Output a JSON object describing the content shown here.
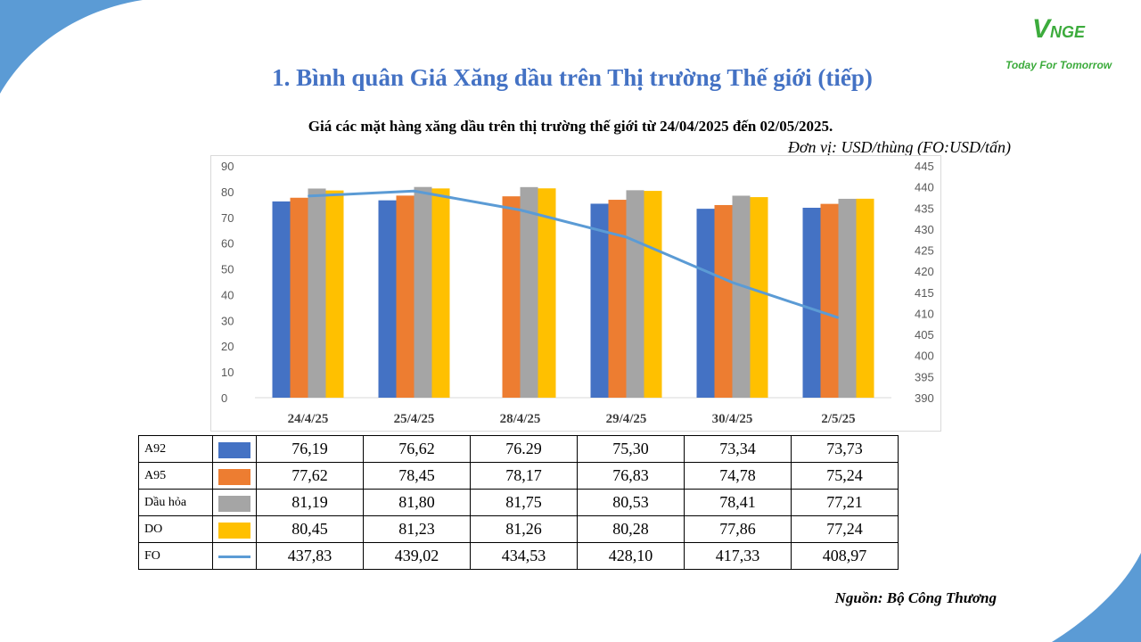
{
  "page": {
    "title": "1. Bình quân Giá Xăng dầu trên Thị trường Thế giới (tiếp)",
    "logo_mark": "V",
    "logo_mark_rest": "NGE",
    "logo_tagline": "Today For Tomorrow",
    "source": "Nguồn: Bộ Công Thương"
  },
  "colors": {
    "accent": "#4472c4",
    "corner": "#5b9bd5",
    "logo": "#3cab3c"
  },
  "chart_data": {
    "type": "bar",
    "title": "Giá các mặt hàng xăng dầu trên thị trường thế giới từ 24/04/2025 đến 02/05/2025.",
    "unit": "Đơn vị:  USD/thùng (FO:USD/tấn)",
    "categories": [
      "24/4/25",
      "25/4/25",
      "28/4/25",
      "29/4/25",
      "30/4/25",
      "2/5/25"
    ],
    "y_left": {
      "min": 0,
      "max": 90,
      "ticks": [
        "0",
        "10",
        "20",
        "30",
        "40",
        "50",
        "60",
        "70",
        "80",
        "90"
      ]
    },
    "y_right": {
      "min": 390,
      "max": 445,
      "ticks": [
        "390",
        "395",
        "400",
        "405",
        "410",
        "415",
        "420",
        "425",
        "430",
        "435",
        "440",
        "445"
      ]
    },
    "grid": false,
    "legend": "table-below",
    "series": [
      {
        "name": "A92",
        "type": "bar",
        "axis": "left",
        "color": "#4472c4",
        "values": [
          76.19,
          76.62,
          null,
          75.3,
          73.34,
          73.73
        ],
        "labels": [
          "76,19",
          "76,62",
          "76.29",
          "75,30",
          "73,34",
          "73,73"
        ]
      },
      {
        "name": "A95",
        "type": "bar",
        "axis": "left",
        "color": "#ed7d31",
        "values": [
          77.62,
          78.45,
          78.17,
          76.83,
          74.78,
          75.24
        ],
        "labels": [
          "77,62",
          "78,45",
          "78,17",
          "76,83",
          "74,78",
          "75,24"
        ]
      },
      {
        "name": "Dầu hỏa",
        "type": "bar",
        "axis": "left",
        "color": "#a5a5a5",
        "values": [
          81.19,
          81.8,
          81.75,
          80.53,
          78.41,
          77.21
        ],
        "labels": [
          "81,19",
          "81,80",
          "81,75",
          "80,53",
          "78,41",
          "77,21"
        ]
      },
      {
        "name": "DO",
        "type": "bar",
        "axis": "left",
        "color": "#ffc000",
        "values": [
          80.45,
          81.23,
          81.26,
          80.28,
          77.86,
          77.24
        ],
        "labels": [
          "80,45",
          "81,23",
          "81,26",
          "80,28",
          "77,86",
          "77,24"
        ]
      },
      {
        "name": "FO",
        "type": "line",
        "axis": "right",
        "color": "#5b9bd5",
        "values": [
          437.83,
          439.02,
          434.53,
          428.1,
          417.33,
          408.97
        ],
        "labels": [
          "437,83",
          "439,02",
          "434,53",
          "428,10",
          "417,33",
          "408,97"
        ]
      }
    ]
  }
}
